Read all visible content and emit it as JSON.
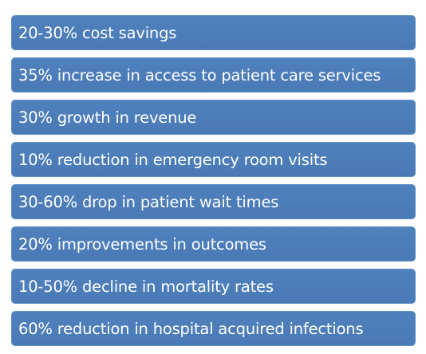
{
  "stats": {
    "items": [
      {
        "label": "20-30% cost savings"
      },
      {
        "label": "35% increase in access to patient care services"
      },
      {
        "label": "30% growth in revenue"
      },
      {
        "label": "10% reduction in emergency room visits"
      },
      {
        "label": "30-60% drop in patient wait times"
      },
      {
        "label": "20% improvements in outcomes"
      },
      {
        "label": "10-50% decline in mortality rates"
      },
      {
        "label": "60% reduction in hospital acquired infections"
      }
    ]
  },
  "colors": {
    "box_fill": "#4f81bd",
    "box_text": "#ffffff"
  }
}
